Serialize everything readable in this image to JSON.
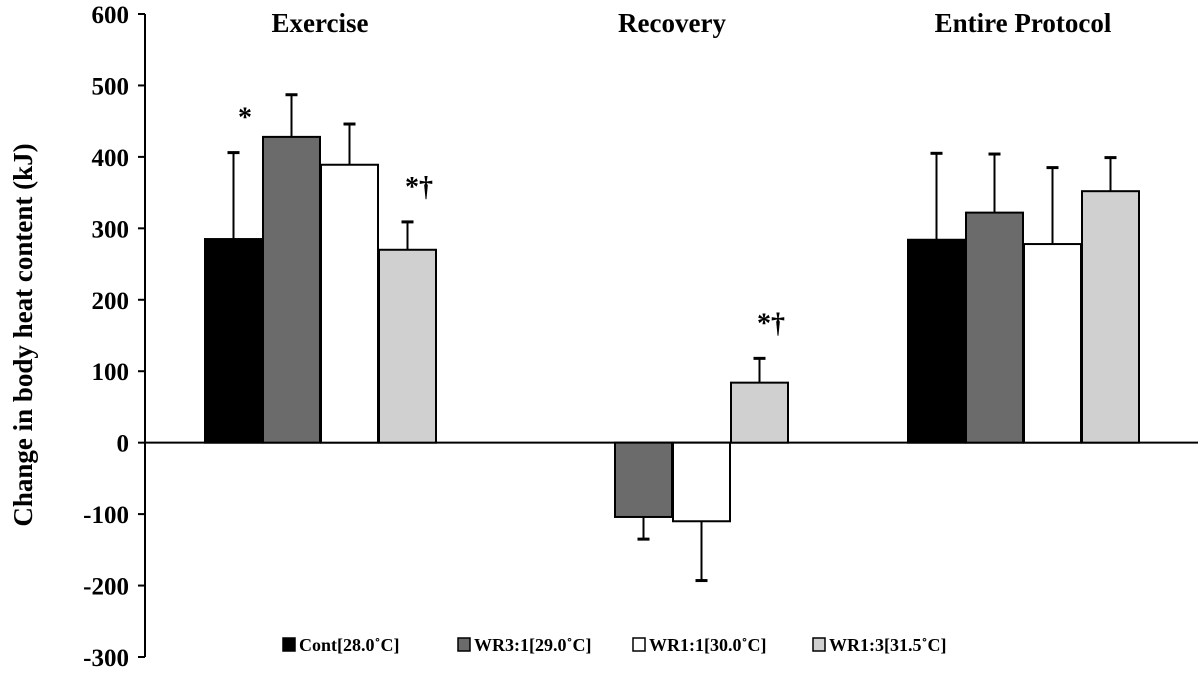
{
  "chart_data": {
    "type": "bar",
    "title": "",
    "xlabel": "",
    "ylabel": "Change in body heat content (kJ)",
    "ylim": [
      -300,
      600
    ],
    "yticks": [
      600,
      500,
      400,
      300,
      200,
      100,
      0,
      -100,
      -200,
      -300
    ],
    "grid": false,
    "legend_position": "bottom",
    "categories": [
      "Exercise",
      "Recovery",
      "Entire Protocol"
    ],
    "series": [
      {
        "name": "Cont[28.0˚C]",
        "color": "#000000",
        "values": [
          285,
          0,
          284
        ],
        "errors": [
          121,
          0,
          121
        ]
      },
      {
        "name": "WR3:1[29.0˚C]",
        "color": "#6b6b6b",
        "values": [
          428,
          -104,
          322
        ],
        "errors": [
          59,
          31,
          82
        ]
      },
      {
        "name": "WR1:1[30.0˚C]",
        "color": "#ffffff",
        "values": [
          389,
          -110,
          278
        ],
        "errors": [
          57,
          83,
          107
        ]
      },
      {
        "name": "WR1:3[31.5˚C]",
        "color": "#d0d0d0",
        "values": [
          270,
          84,
          352
        ],
        "errors": [
          39,
          34,
          47
        ]
      }
    ],
    "annotations": [
      {
        "category": "Exercise",
        "series": "Cont[28.0˚C]",
        "text": "*"
      },
      {
        "category": "Exercise",
        "series": "WR1:3[31.5˚C]",
        "text": "*†"
      },
      {
        "category": "Recovery",
        "series": "WR1:3[31.5˚C]",
        "text": "*†"
      }
    ]
  }
}
